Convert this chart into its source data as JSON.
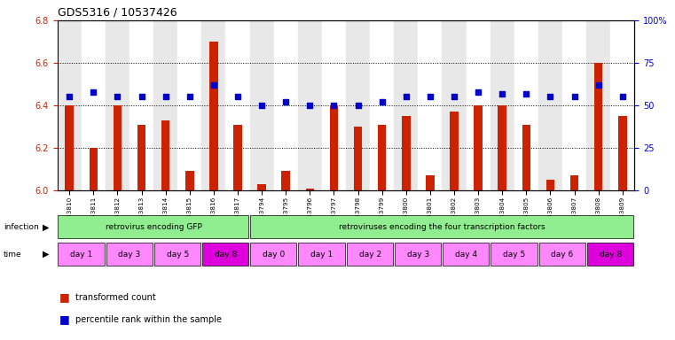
{
  "title": "GDS5316 / 10537426",
  "samples": [
    "GSM943810",
    "GSM943811",
    "GSM943812",
    "GSM943813",
    "GSM943814",
    "GSM943815",
    "GSM943816",
    "GSM943817",
    "GSM943794",
    "GSM943795",
    "GSM943796",
    "GSM943797",
    "GSM943798",
    "GSM943799",
    "GSM943800",
    "GSM943801",
    "GSM943802",
    "GSM943803",
    "GSM943804",
    "GSM943805",
    "GSM943806",
    "GSM943807",
    "GSM943808",
    "GSM943809"
  ],
  "red_values": [
    6.4,
    6.2,
    6.4,
    6.31,
    6.33,
    6.09,
    6.7,
    6.31,
    6.03,
    6.09,
    6.01,
    6.4,
    6.3,
    6.31,
    6.35,
    6.07,
    6.37,
    6.4,
    6.4,
    6.31,
    6.05,
    6.07,
    6.6,
    6.35
  ],
  "blue_values": [
    55,
    58,
    55,
    55,
    55,
    55,
    62,
    55,
    50,
    52,
    50,
    50,
    50,
    52,
    55,
    55,
    55,
    58,
    57,
    57,
    55,
    55,
    62,
    55
  ],
  "ylim_left": [
    6.0,
    6.8
  ],
  "ylim_right": [
    0,
    100
  ],
  "yticks_left": [
    6.0,
    6.2,
    6.4,
    6.6,
    6.8
  ],
  "yticks_right": [
    0,
    25,
    50,
    75,
    100
  ],
  "infection_groups": [
    {
      "label": "retrovirus encoding GFP",
      "start": 0,
      "end": 8,
      "color": "#90EE90"
    },
    {
      "label": "retroviruses encoding the four transcription factors",
      "start": 8,
      "end": 24,
      "color": "#90EE90"
    }
  ],
  "time_groups": [
    {
      "label": "day 1",
      "start": 0,
      "end": 2,
      "color": "#FF88FF"
    },
    {
      "label": "day 3",
      "start": 2,
      "end": 4,
      "color": "#FF88FF"
    },
    {
      "label": "day 5",
      "start": 4,
      "end": 6,
      "color": "#FF88FF"
    },
    {
      "label": "day 8",
      "start": 6,
      "end": 8,
      "color": "#DD00DD"
    },
    {
      "label": "day 0",
      "start": 8,
      "end": 10,
      "color": "#FF88FF"
    },
    {
      "label": "day 1",
      "start": 10,
      "end": 12,
      "color": "#FF88FF"
    },
    {
      "label": "day 2",
      "start": 12,
      "end": 14,
      "color": "#FF88FF"
    },
    {
      "label": "day 3",
      "start": 14,
      "end": 16,
      "color": "#FF88FF"
    },
    {
      "label": "day 4",
      "start": 16,
      "end": 18,
      "color": "#FF88FF"
    },
    {
      "label": "day 5",
      "start": 18,
      "end": 20,
      "color": "#FF88FF"
    },
    {
      "label": "day 6",
      "start": 20,
      "end": 22,
      "color": "#FF88FF"
    },
    {
      "label": "day 8",
      "start": 22,
      "end": 24,
      "color": "#DD00DD"
    }
  ],
  "bar_color": "#CC2200",
  "dot_color": "#0000CC",
  "grid_color": "#000000",
  "col_bg_even": "#E8E8E8",
  "col_bg_odd": "#FFFFFF",
  "left_tick_color": "#CC2200",
  "right_tick_color": "#0000CC"
}
